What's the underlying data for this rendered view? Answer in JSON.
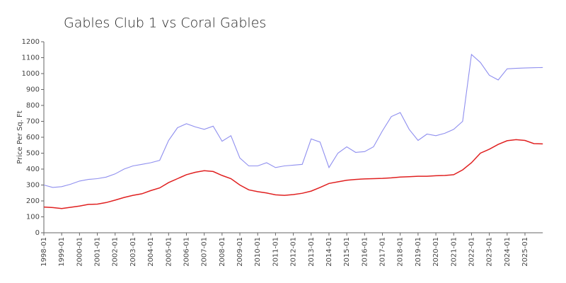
{
  "chart_data": {
    "type": "line",
    "title": "Gables Club 1 vs Coral Gables",
    "ylabel": "Price Per Sq. Ft",
    "categories": [
      "1998-01",
      null,
      "1999-01",
      null,
      "2000-01",
      null,
      "2001-01",
      null,
      "2002-01",
      null,
      "2003-01",
      null,
      "2004-01",
      null,
      "2005-01",
      null,
      "2006-01",
      null,
      "2007-01",
      null,
      "2008-01",
      null,
      "2009-01",
      null,
      "2010-01",
      null,
      "2011-01",
      null,
      "2012-01",
      null,
      "2013-01",
      null,
      "2014-01",
      null,
      "2015-01",
      null,
      "2016-01",
      null,
      "2017-01",
      null,
      "2018-01",
      null,
      "2019-01",
      null,
      "2020-01",
      null,
      "2021-01",
      null,
      "2022-01",
      null,
      "2023-01",
      null,
      "2024-01",
      null,
      "2025-01",
      null,
      null
    ],
    "series": [
      {
        "color": "#8f8fef",
        "values": [
          300,
          285,
          290,
          305,
          325,
          335,
          340,
          350,
          370,
          400,
          420,
          430,
          440,
          455,
          580,
          660,
          685,
          665,
          650,
          670,
          575,
          610,
          470,
          420,
          420,
          440,
          410,
          420,
          425,
          430,
          590,
          570,
          410,
          500,
          540,
          505,
          510,
          540,
          640,
          730,
          755,
          650,
          580,
          620,
          610,
          625,
          650,
          700,
          1120,
          1070,
          990,
          960,
          1030,
          1033,
          1035,
          1037,
          1038
        ]
      },
      {
        "color": "#e02020",
        "values": [
          162,
          158,
          152,
          160,
          168,
          178,
          180,
          190,
          205,
          222,
          235,
          245,
          265,
          282,
          315,
          340,
          365,
          380,
          390,
          385,
          360,
          340,
          300,
          270,
          258,
          250,
          238,
          235,
          240,
          248,
          262,
          285,
          310,
          320,
          330,
          335,
          338,
          340,
          342,
          345,
          350,
          352,
          355,
          355,
          358,
          360,
          365,
          395,
          440,
          500,
          525,
          555,
          578,
          585,
          580,
          560,
          558
        ]
      }
    ],
    "ylim": [
      0,
      1200
    ],
    "yticks": [
      0,
      100,
      200,
      300,
      400,
      500,
      600,
      700,
      800,
      900,
      1000,
      1100,
      1200
    ],
    "grid": false
  }
}
